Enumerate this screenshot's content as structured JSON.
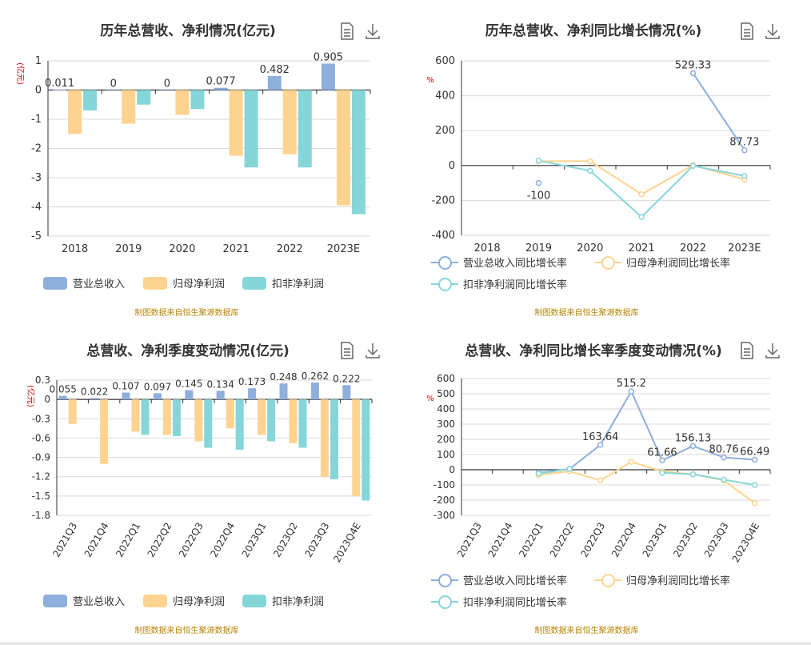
{
  "colors": {
    "revenue": "#8eaedc",
    "net_profit": "#fed38f",
    "deducted_profit": "#85d6d9",
    "grid": "#d9d9d9",
    "axis": "#333333",
    "source_text": "#b8860b",
    "unit_text": "#cc0000"
  },
  "source_label": "制图数据来自恒生聚源数据库",
  "toolbar": {
    "data_view_icon": "document-icon",
    "download_icon": "download-icon"
  },
  "chart_data": [
    {
      "id": "annual_revenue_profit",
      "type": "bar",
      "title": "历年总营收、净利情况(亿元)",
      "ylabel": "(亿元)",
      "categories": [
        "2018",
        "2019",
        "2020",
        "2021",
        "2022",
        "2023E"
      ],
      "ylim": [
        -5,
        1
      ],
      "yticks": [
        "-5",
        "-4",
        "-3",
        "-2",
        "-1",
        "0",
        "1"
      ],
      "grid": true,
      "legend_position": "bottom",
      "series": [
        {
          "name": "营业总收入",
          "values": [
            0.011,
            0,
            0,
            0.077,
            0.482,
            0.905
          ],
          "labels": [
            "0.011",
            "0",
            "0",
            "0.077",
            "0.482",
            "0.905"
          ]
        },
        {
          "name": "归母净利润",
          "values": [
            -1.5,
            -1.15,
            -0.85,
            -2.25,
            -2.2,
            -3.95
          ]
        },
        {
          "name": "扣非净利润",
          "values": [
            -0.7,
            -0.5,
            -0.65,
            -2.65,
            -2.65,
            -4.25
          ]
        }
      ]
    },
    {
      "id": "annual_growth_rate",
      "type": "line",
      "title": "历年总营收、净利同比增长情况(%)",
      "ylabel": "%",
      "categories": [
        "2018",
        "2019",
        "2020",
        "2021",
        "2022",
        "2023E"
      ],
      "ylim": [
        -400,
        600
      ],
      "yticks": [
        "-400",
        "-200",
        "0",
        "200",
        "400",
        "600"
      ],
      "grid": true,
      "legend_position": "bottom",
      "series": [
        {
          "name": "营业总收入同比增长率",
          "values": [
            null,
            -100,
            null,
            null,
            529.33,
            87.73
          ],
          "labels": [
            "",
            "-100",
            "",
            "",
            "529.33",
            "87.73"
          ]
        },
        {
          "name": "归母净利润同比增长率",
          "values": [
            null,
            25,
            25,
            -165,
            2,
            -80
          ]
        },
        {
          "name": "扣非净利润同比增长率",
          "values": [
            null,
            28,
            -30,
            -295,
            -2,
            -60
          ]
        }
      ]
    },
    {
      "id": "quarterly_revenue_profit",
      "type": "bar",
      "title": "总营收、净利季度变动情况(亿元)",
      "ylabel": "(亿元)",
      "categories": [
        "2021Q3",
        "2021Q4",
        "2022Q1",
        "2022Q2",
        "2022Q3",
        "2022Q4",
        "2023Q1",
        "2023Q2",
        "2023Q3",
        "2023Q4E"
      ],
      "ylim": [
        -1.8,
        0.3
      ],
      "yticks": [
        "-1.8",
        "-1.5",
        "-1.2",
        "-0.9",
        "-0.6",
        "-0.3",
        "0",
        "0.3"
      ],
      "grid": true,
      "legend_position": "bottom",
      "series": [
        {
          "name": "营业总收入",
          "values": [
            0.055,
            0.022,
            0.107,
            0.097,
            0.145,
            0.134,
            0.173,
            0.248,
            0.262,
            0.222
          ],
          "labels": [
            "0.055",
            "0.022",
            "0.107",
            "0.097",
            "0.145",
            "0.134",
            "0.173",
            "0.248",
            "0.262",
            "0.222"
          ]
        },
        {
          "name": "归母净利润",
          "values": [
            -0.38,
            -1.0,
            -0.5,
            -0.55,
            -0.65,
            -0.45,
            -0.55,
            -0.68,
            -1.2,
            -1.5
          ]
        },
        {
          "name": "扣非净利润",
          "values": [
            null,
            null,
            -0.55,
            -0.57,
            -0.75,
            -0.78,
            -0.65,
            -0.75,
            -1.24,
            -1.57
          ]
        }
      ]
    },
    {
      "id": "quarterly_growth_rate",
      "type": "line",
      "title": "总营收、净利同比增长率季度变动情况(%)",
      "ylabel": "%",
      "categories": [
        "2021Q3",
        "2021Q4",
        "2022Q1",
        "2022Q2",
        "2022Q3",
        "2022Q4",
        "2023Q1",
        "2023Q2",
        "2023Q3",
        "2023Q4E"
      ],
      "ylim": [
        -300,
        600
      ],
      "yticks": [
        "-300",
        "-200",
        "-100",
        "0",
        "100",
        "200",
        "300",
        "400",
        "500",
        "600"
      ],
      "grid": true,
      "legend_position": "bottom",
      "series": [
        {
          "name": "营业总收入同比增长率",
          "values": [
            null,
            null,
            -20,
            5,
            163.64,
            515.2,
            61.66,
            156.13,
            80.76,
            66.49
          ],
          "labels": [
            "",
            "",
            "",
            "",
            "163.64",
            "515.2",
            "61.66",
            "156.13",
            "80.76",
            "66.49"
          ]
        },
        {
          "name": "归母净利润同比增长率",
          "values": [
            null,
            null,
            -35,
            -10,
            -70,
            52,
            -10,
            -30,
            -70,
            -220
          ]
        },
        {
          "name": "扣非净利润同比增长率",
          "values": [
            null,
            null,
            -25,
            5,
            null,
            null,
            -20,
            -30,
            -65,
            -100
          ]
        }
      ]
    }
  ]
}
